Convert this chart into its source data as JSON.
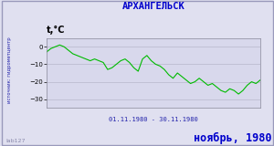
{
  "title": "АРХАНГЕЛЬСК",
  "ylabel": "t,°C",
  "xlabel_date": "01.11.1980 - 30.11.1980",
  "footer_left": "lab127",
  "footer_right": "ноябрь, 1980",
  "source_label": "источник: гидрометцентр",
  "ylim": [
    -35,
    5
  ],
  "yticks": [
    0,
    -10,
    -20,
    -30
  ],
  "line_color": "#00bb00",
  "bg_color": "#e0e0f0",
  "plot_bg": "#d8d8ec",
  "grid_color": "#b8b8cc",
  "title_color": "#0000cc",
  "footer_color": "#0000cc",
  "axis_label_color": "#2222aa",
  "source_color": "#2222aa",
  "border_color": "#9999bb",
  "temps": [
    -3,
    -1,
    0,
    1,
    0,
    -2,
    -4,
    -5,
    -6,
    -7,
    -8,
    -7,
    -8,
    -9,
    -13,
    -12,
    -10,
    -8,
    -7,
    -9,
    -12,
    -14,
    -7,
    -5,
    -8,
    -10,
    -11,
    -13,
    -16,
    -18,
    -15,
    -17,
    -19,
    -21,
    -20,
    -18,
    -20,
    -22,
    -21,
    -23,
    -25,
    -26,
    -24,
    -25,
    -27,
    -25,
    -22,
    -20,
    -21,
    -19
  ]
}
